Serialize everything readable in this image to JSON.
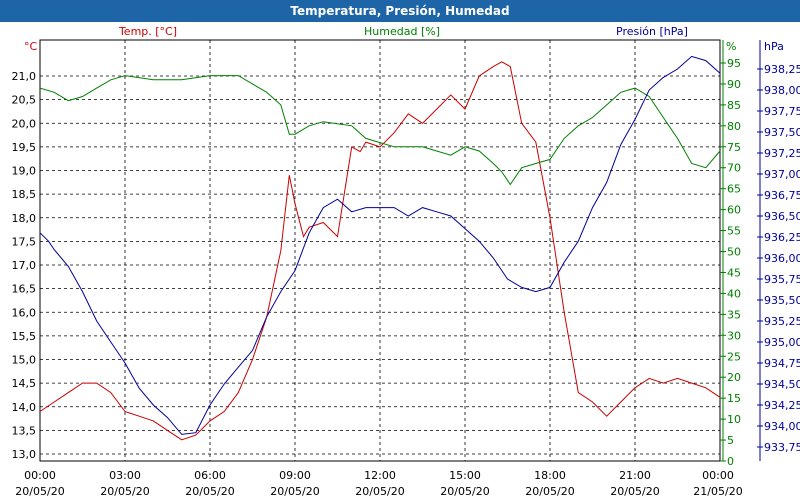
{
  "window": {
    "title": "Temperatura, Presión, Humedad"
  },
  "chart_data": {
    "type": "line",
    "title": "Temperatura, Presión, Humedad",
    "grid": true,
    "colors": {
      "temperature": "#cc0000",
      "humidity": "#008000",
      "pressure": "#000099",
      "title_bar": "#1d65a6"
    },
    "axes": {
      "temperature": {
        "unit_label": "°C",
        "ylim": [
          13.0,
          21.5
        ],
        "ticks": [
          "13,0",
          "13,5",
          "14,0",
          "14,5",
          "15,0",
          "15,5",
          "16,0",
          "16,5",
          "17,0",
          "17,5",
          "18,0",
          "18,5",
          "19,0",
          "19,5",
          "20,0",
          "20,5",
          "21,0"
        ]
      },
      "humidity": {
        "unit_label": "%",
        "ylim": [
          0,
          100
        ],
        "ticks": [
          "0",
          "5",
          "10",
          "15",
          "20",
          "25",
          "30",
          "35",
          "40",
          "45",
          "50",
          "55",
          "60",
          "65",
          "70",
          "75",
          "80",
          "85",
          "90",
          "95"
        ]
      },
      "pressure": {
        "unit_label": "hPa",
        "ylim": [
          933.63,
          938.5
        ],
        "ticks": [
          "933,75",
          "934,00",
          "934,25",
          "934,50",
          "934,75",
          "935,00",
          "935,25",
          "935,50",
          "935,75",
          "936,00",
          "936,25",
          "936,50",
          "936,75",
          "937,00",
          "937,25",
          "937,50",
          "937,75",
          "938,00",
          "938,25"
        ]
      }
    },
    "x_ticks": [
      {
        "time": "00:00",
        "date": "20/05/20"
      },
      {
        "time": "03:00",
        "date": "20/05/20"
      },
      {
        "time": "06:00",
        "date": "20/05/20"
      },
      {
        "time": "09:00",
        "date": "20/05/20"
      },
      {
        "time": "12:00",
        "date": "20/05/20"
      },
      {
        "time": "15:00",
        "date": "20/05/20"
      },
      {
        "time": "18:00",
        "date": "20/05/20"
      },
      {
        "time": "21:00",
        "date": "20/05/20"
      },
      {
        "time": "00:00",
        "date": "21/05/20"
      }
    ],
    "series": [
      {
        "name": "Temp. [°C]",
        "axis": "temperature",
        "x": [
          0,
          0.5,
          1,
          1.5,
          2,
          2.5,
          3,
          3.5,
          4,
          4.5,
          5,
          5.5,
          6,
          6.5,
          7,
          7.5,
          8,
          8.5,
          8.8,
          9,
          9.3,
          9.5,
          10,
          10.5,
          11,
          11.3,
          11.5,
          12,
          12.5,
          13,
          13.5,
          14,
          14.5,
          15,
          15.5,
          16,
          16.3,
          16.6,
          17,
          17.5,
          18,
          18.5,
          19,
          19.5,
          20,
          20.5,
          21,
          21.5,
          22,
          22.5,
          23,
          23.5,
          24
        ],
        "values": [
          13.9,
          14.1,
          14.3,
          14.5,
          14.5,
          14.3,
          13.9,
          13.8,
          13.7,
          13.5,
          13.3,
          13.4,
          13.7,
          13.9,
          14.3,
          15.0,
          15.9,
          17.3,
          18.9,
          18.3,
          17.6,
          17.8,
          17.9,
          17.6,
          19.5,
          19.4,
          19.6,
          19.5,
          19.8,
          20.2,
          20.0,
          20.3,
          20.6,
          20.3,
          21.0,
          21.2,
          21.3,
          21.2,
          20.0,
          19.6,
          18.0,
          16.0,
          14.3,
          14.1,
          13.8,
          14.1,
          14.4,
          14.6,
          14.5,
          14.6,
          14.5,
          14.4,
          14.2
        ]
      },
      {
        "name": "Humedad [%]",
        "axis": "humidity",
        "x": [
          0,
          0.5,
          1,
          1.5,
          2,
          2.5,
          3,
          4,
          5,
          6,
          6.5,
          7,
          7.5,
          8,
          8.5,
          8.8,
          9,
          9.5,
          10,
          11,
          11.5,
          12,
          12.5,
          13,
          13.5,
          14,
          14.5,
          15,
          15.5,
          16,
          16.3,
          16.6,
          17,
          17.5,
          18,
          18.5,
          19,
          19.5,
          20,
          20.5,
          21,
          21.5,
          22,
          22.5,
          23,
          23.5,
          24
        ],
        "values": [
          89,
          88,
          86,
          87,
          89,
          91,
          92,
          91,
          91,
          92,
          92,
          92,
          90,
          88,
          85,
          78,
          78,
          80,
          81,
          80,
          77,
          76,
          75,
          75,
          75,
          74,
          73,
          75,
          74,
          71,
          69,
          66,
          70,
          71,
          72,
          77,
          80,
          82,
          85,
          88,
          89,
          87,
          82,
          77,
          71,
          70,
          74
        ]
      },
      {
        "name": "Presión [hPa]",
        "axis": "pressure",
        "x": [
          0,
          0.3,
          0.5,
          1,
          1.5,
          2,
          2.5,
          3,
          3.5,
          4,
          4.5,
          5,
          5.5,
          6,
          6.5,
          7,
          7.5,
          8,
          8.5,
          9,
          9.5,
          10,
          10.5,
          11,
          11.5,
          12,
          12.5,
          13,
          13.5,
          14,
          14.5,
          15,
          15.5,
          16,
          16.5,
          17,
          17.5,
          18,
          18.5,
          19,
          19.5,
          20,
          20.5,
          21,
          21.5,
          22,
          22.5,
          23,
          23.5,
          24
        ],
        "values": [
          936.3,
          936.2,
          936.1,
          935.9,
          935.6,
          935.25,
          935.0,
          934.75,
          934.45,
          934.25,
          934.1,
          933.9,
          933.92,
          934.25,
          934.5,
          934.7,
          934.9,
          935.3,
          935.6,
          935.85,
          936.3,
          936.6,
          936.7,
          936.55,
          936.6,
          936.6,
          936.6,
          936.5,
          936.6,
          936.55,
          936.5,
          936.35,
          936.2,
          936.0,
          935.75,
          935.65,
          935.6,
          935.65,
          935.95,
          936.2,
          936.6,
          936.9,
          937.35,
          937.65,
          938.0,
          938.15,
          938.25,
          938.4,
          938.35,
          938.2
        ]
      }
    ]
  }
}
